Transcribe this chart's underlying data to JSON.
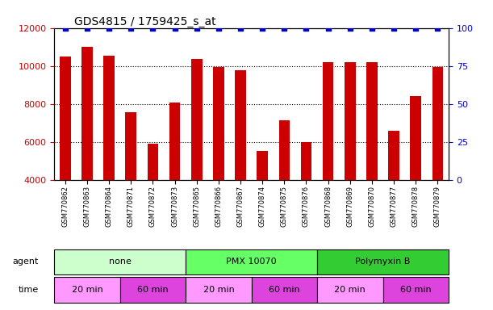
{
  "title": "GDS4815 / 1759425_s_at",
  "samples": [
    "GSM770862",
    "GSM770863",
    "GSM770864",
    "GSM770871",
    "GSM770872",
    "GSM770873",
    "GSM770865",
    "GSM770866",
    "GSM770867",
    "GSM770874",
    "GSM770875",
    "GSM770876",
    "GSM770868",
    "GSM770869",
    "GSM770870",
    "GSM770877",
    "GSM770878",
    "GSM770879"
  ],
  "counts": [
    10500,
    11000,
    10550,
    7550,
    5900,
    8050,
    10350,
    9950,
    9750,
    5500,
    7150,
    6000,
    10200,
    10200,
    10200,
    6600,
    8400,
    9950
  ],
  "percentiles": [
    100,
    100,
    100,
    100,
    100,
    100,
    100,
    100,
    100,
    100,
    100,
    100,
    100,
    100,
    100,
    100,
    100,
    100
  ],
  "bar_color": "#cc0000",
  "percentile_color": "#0000cc",
  "ylim_left": [
    4000,
    12000
  ],
  "ylim_right": [
    0,
    100
  ],
  "yticks_left": [
    4000,
    6000,
    8000,
    10000,
    12000
  ],
  "yticks_right": [
    0,
    25,
    50,
    75,
    100
  ],
  "agent_groups": [
    {
      "label": "none",
      "start": 0,
      "end": 6,
      "color": "#ccffcc"
    },
    {
      "label": "PMX 10070",
      "start": 6,
      "end": 12,
      "color": "#66ff66"
    },
    {
      "label": "Polymyxin B",
      "start": 12,
      "end": 18,
      "color": "#33cc33"
    }
  ],
  "time_groups": [
    {
      "label": "20 min",
      "start": 0,
      "end": 3,
      "color": "#ff99ff"
    },
    {
      "label": "60 min",
      "start": 3,
      "end": 6,
      "color": "#dd44dd"
    },
    {
      "label": "20 min",
      "start": 6,
      "end": 9,
      "color": "#ff99ff"
    },
    {
      "label": "60 min",
      "start": 9,
      "end": 12,
      "color": "#dd44dd"
    },
    {
      "label": "20 min",
      "start": 12,
      "end": 15,
      "color": "#ff99ff"
    },
    {
      "label": "60 min",
      "start": 15,
      "end": 18,
      "color": "#dd44dd"
    }
  ],
  "legend_count_color": "#cc0000",
  "legend_percentile_color": "#0000cc",
  "tick_label_color_left": "#cc0000",
  "tick_label_color_right": "#0000cc"
}
